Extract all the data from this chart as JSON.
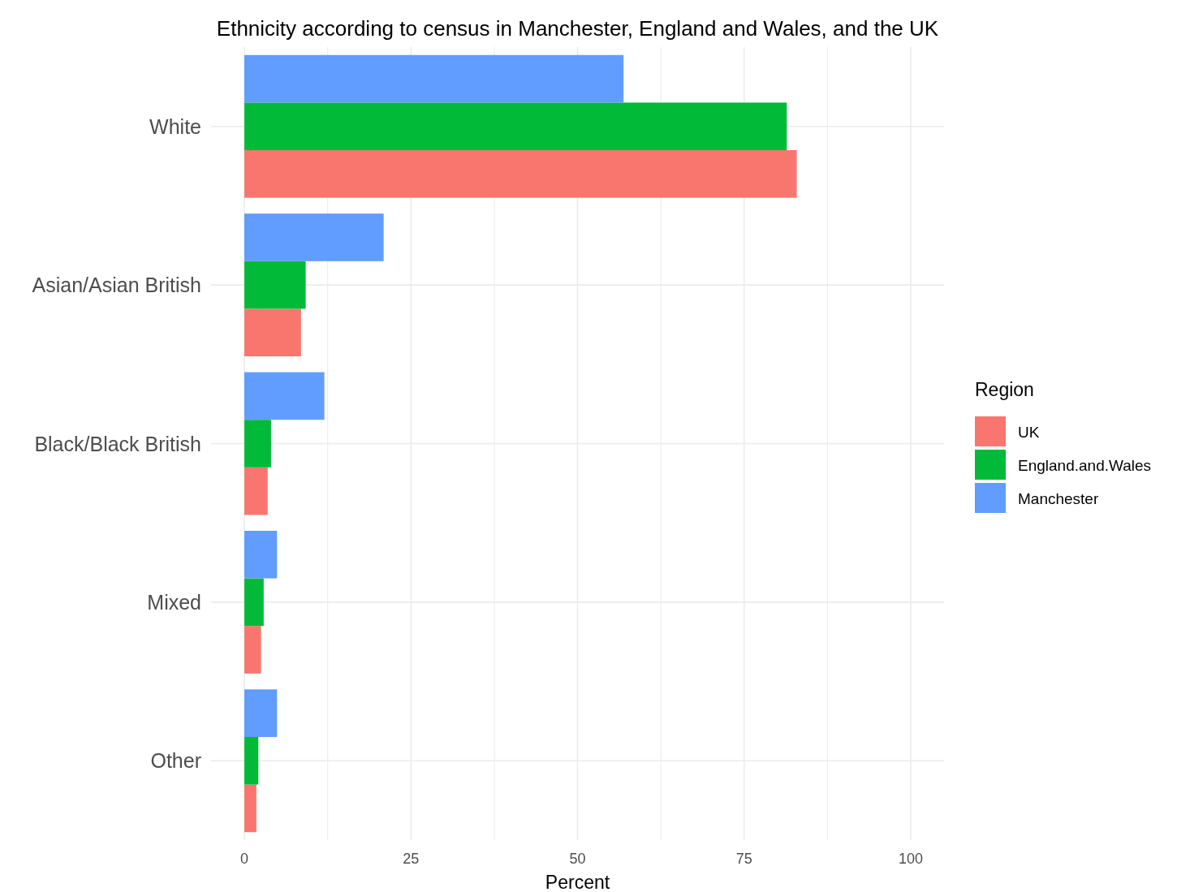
{
  "chart_data": {
    "type": "bar",
    "orientation": "horizontal",
    "title": "Ethnicity according to census in Manchester, England and Wales, and the UK",
    "xlabel": "Percent",
    "legend_title": "Region",
    "legend": "right",
    "grid": true,
    "categories": [
      "White",
      "Asian/Asian British",
      "Black/Black British",
      "Mixed",
      "Other"
    ],
    "series": [
      {
        "name": "UK",
        "color": "#f8766d",
        "values": [
          82.9,
          8.5,
          3.5,
          2.5,
          1.8
        ]
      },
      {
        "name": "England.and.Wales",
        "color": "#00ba38",
        "values": [
          81.4,
          9.2,
          4.0,
          2.9,
          2.1
        ]
      },
      {
        "name": "Manchester",
        "color": "#619cff",
        "values": [
          56.9,
          20.9,
          12.0,
          4.9,
          4.9
        ]
      }
    ],
    "xlim": [
      -5,
      105
    ],
    "xticks": [
      0,
      {
        "value": 12.5,
        "label": null
      },
      25,
      {
        "value": 37.5,
        "label": null
      },
      50,
      {
        "value": 62.5,
        "label": null
      },
      75,
      {
        "value": 87.5,
        "label": null
      },
      100
    ]
  }
}
